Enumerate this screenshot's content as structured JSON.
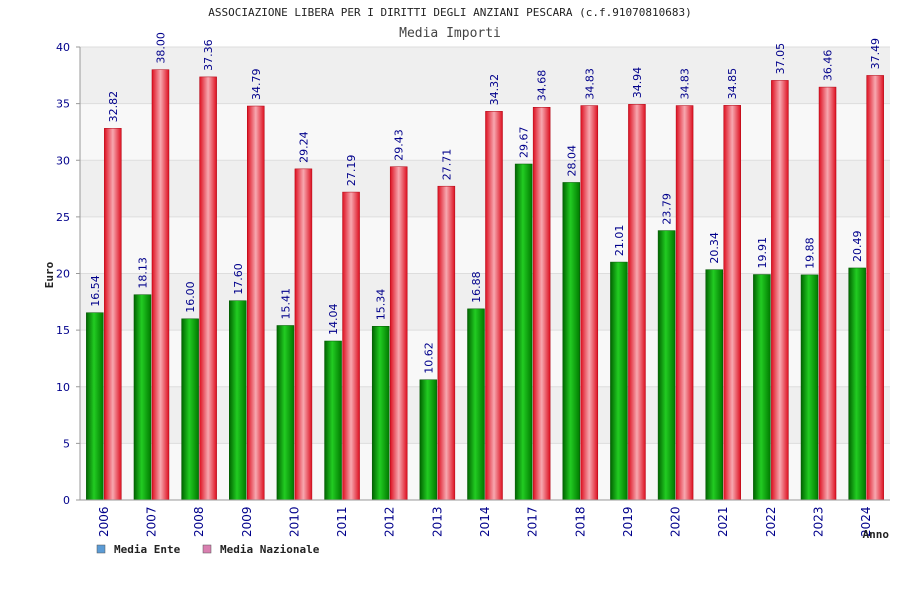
{
  "chart_data": {
    "type": "bar",
    "title": "ASSOCIAZIONE LIBERA PER I DIRITTI DEGLI ANZIANI PESCARA (c.f.91070810683)",
    "subtitle": "Media Importi",
    "xlabel": "Anno",
    "ylabel": "Euro",
    "ylim": [
      0,
      40
    ],
    "yticks": [
      "0",
      "5",
      "10",
      "15",
      "20",
      "25",
      "30",
      "35",
      "40"
    ],
    "categories": [
      "2006",
      "2007",
      "2008",
      "2009",
      "2010",
      "2011",
      "2012",
      "2013",
      "2014",
      "2017",
      "2018",
      "2019",
      "2020",
      "2021",
      "2022",
      "2023",
      "2024"
    ],
    "series": [
      {
        "name": "Media Ente",
        "values": [
          16.54,
          18.13,
          16.0,
          17.6,
          15.41,
          14.04,
          15.34,
          10.62,
          16.88,
          29.67,
          28.04,
          21.01,
          23.79,
          20.34,
          19.91,
          19.88,
          20.49
        ],
        "labels": [
          "16.54",
          "18.13",
          "16.00",
          "17.60",
          "15.41",
          "14.04",
          "15.34",
          "10.62",
          "16.88",
          "29.67",
          "28.04",
          "21.01",
          "23.79",
          "20.34",
          "19.91",
          "19.88",
          "20.49"
        ],
        "color": "#00aa00",
        "legend_color": "#5b9bd5"
      },
      {
        "name": "Media Nazionale",
        "values": [
          32.82,
          38.0,
          37.36,
          34.79,
          29.24,
          27.19,
          29.43,
          27.71,
          34.32,
          34.68,
          34.83,
          34.94,
          34.83,
          34.85,
          37.05,
          36.46,
          37.49
        ],
        "labels": [
          "32.82",
          "38.00",
          "37.36",
          "34.79",
          "29.24",
          "27.19",
          "29.43",
          "27.71",
          "34.32",
          "34.68",
          "34.83",
          "34.94",
          "34.83",
          "34.85",
          "37.05",
          "36.46",
          "37.49"
        ],
        "color": "#e8202a",
        "legend_color": "#d97fb0"
      }
    ],
    "legend_position": "bottom-left",
    "grid": true
  }
}
